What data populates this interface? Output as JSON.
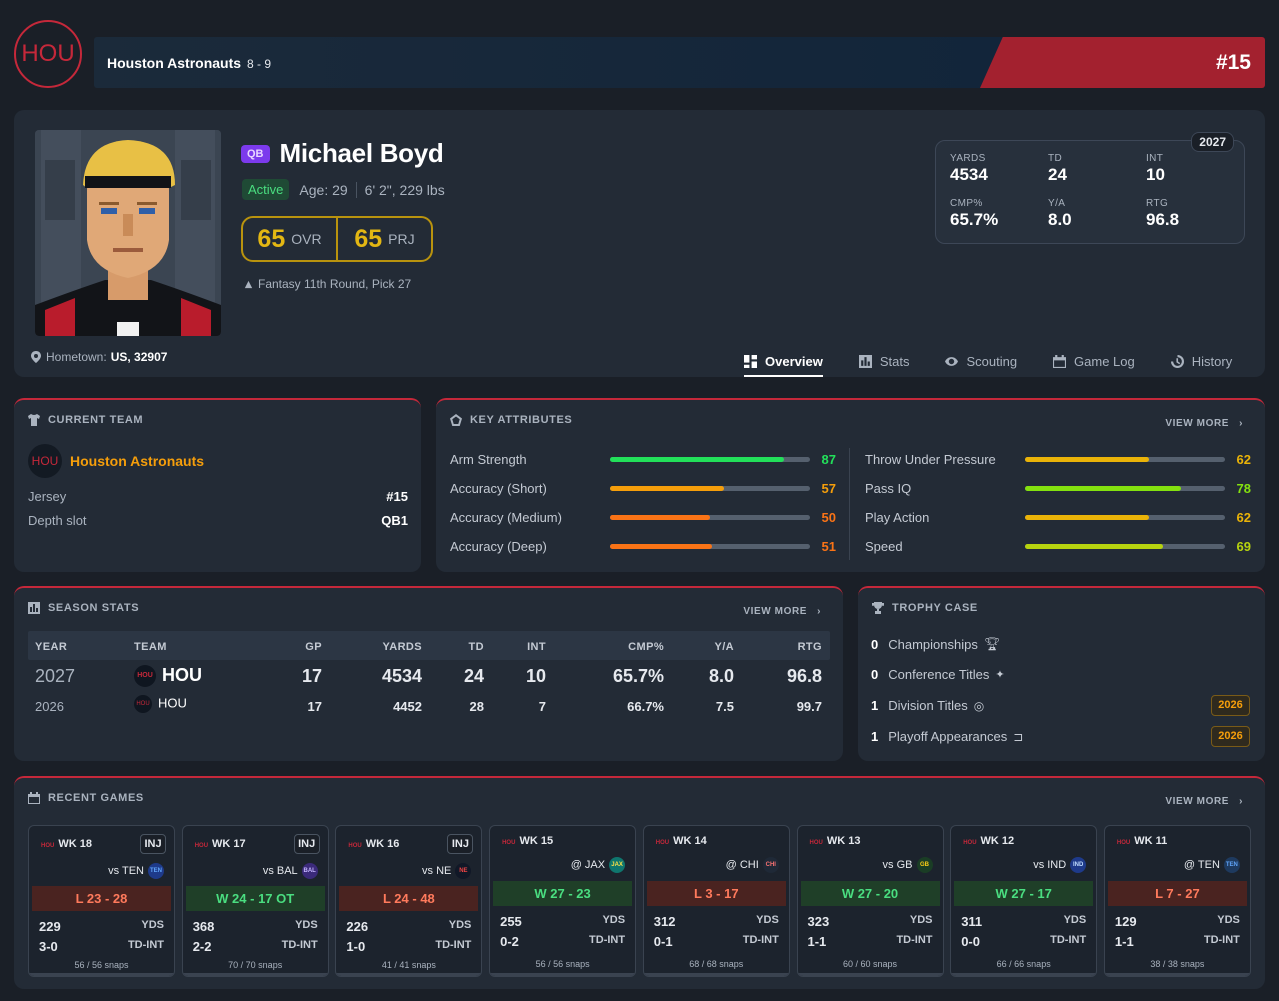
{
  "team_header": {
    "logo": "HOU",
    "name": "Houston Astronauts",
    "record": "8 - 9",
    "jersey": "#15"
  },
  "player": {
    "position": "QB",
    "name": "Michael Boyd",
    "status": "Active",
    "age": "Age: 29",
    "size": "6' 2\", 229 lbs",
    "ovr": "65",
    "ovr_label": "OVR",
    "prj": "65",
    "prj_label": "PRJ",
    "draft": "Fantasy 11th Round, Pick 27",
    "hometown_label": "Hometown:",
    "hometown": "US, 32907"
  },
  "season_box": {
    "year": "2027",
    "stats": [
      {
        "k": "YARDS",
        "v": "4534"
      },
      {
        "k": "TD",
        "v": "24"
      },
      {
        "k": "INT",
        "v": "10"
      },
      {
        "k": "CMP%",
        "v": "65.7%"
      },
      {
        "k": "Y/A",
        "v": "8.0"
      },
      {
        "k": "RTG",
        "v": "96.8"
      }
    ]
  },
  "tabs": [
    {
      "label": "Overview",
      "icon": "grid-icon"
    },
    {
      "label": "Stats",
      "icon": "bar-chart-icon"
    },
    {
      "label": "Scouting",
      "icon": "eye-icon"
    },
    {
      "label": "Game Log",
      "icon": "calendar-icon"
    },
    {
      "label": "History",
      "icon": "history-icon"
    }
  ],
  "current_team": {
    "title": "CURRENT TEAM",
    "logo": "HOU",
    "name": "Houston Astronauts",
    "jersey_label": "Jersey",
    "jersey": "#15",
    "depth_label": "Depth slot",
    "depth": "QB1"
  },
  "key_attributes": {
    "title": "KEY ATTRIBUTES",
    "view_more": "VIEW MORE",
    "items": [
      {
        "name": "Arm Strength",
        "value": "87",
        "pct": 87,
        "color": "#22e05a"
      },
      {
        "name": "Accuracy (Short)",
        "value": "57",
        "pct": 57,
        "color": "#f59e0b"
      },
      {
        "name": "Accuracy (Medium)",
        "value": "50",
        "pct": 50,
        "color": "#f97316"
      },
      {
        "name": "Accuracy (Deep)",
        "value": "51",
        "pct": 51,
        "color": "#f97316"
      },
      {
        "name": "Throw Under Pressure",
        "value": "62",
        "pct": 62,
        "color": "#eab308"
      },
      {
        "name": "Pass IQ",
        "value": "78",
        "pct": 78,
        "color": "#84e10f"
      },
      {
        "name": "Play Action",
        "value": "62",
        "pct": 62,
        "color": "#eab308"
      },
      {
        "name": "Speed",
        "value": "69",
        "pct": 69,
        "color": "#b7d30f"
      }
    ]
  },
  "season_stats": {
    "title": "SEASON STATS",
    "view_more": "VIEW MORE",
    "columns": [
      "YEAR",
      "TEAM",
      "GP",
      "YARDS",
      "TD",
      "INT",
      "CMP%",
      "Y/A",
      "RTG"
    ],
    "rows": [
      [
        "2027",
        "HOU",
        "17",
        "4534",
        "24",
        "10",
        "65.7%",
        "8.0",
        "96.8"
      ],
      [
        "2026",
        "HOU",
        "17",
        "4452",
        "28",
        "7",
        "66.7%",
        "7.5",
        "99.7"
      ]
    ]
  },
  "trophy_case": {
    "title": "TROPHY CASE",
    "items": [
      {
        "count": "0",
        "label": "Championships",
        "icon": "trophy-icon",
        "year": ""
      },
      {
        "count": "0",
        "label": "Conference Titles",
        "icon": "star-icon",
        "year": ""
      },
      {
        "count": "1",
        "label": "Division Titles",
        "icon": "medal-icon",
        "year": "2026"
      },
      {
        "count": "1",
        "label": "Playoff Appearances",
        "icon": "bracket-icon",
        "year": "2026"
      }
    ]
  },
  "recent_games": {
    "title": "RECENT GAMES",
    "view_more": "VIEW MORE",
    "games": [
      {
        "week": "WK 18",
        "inj": "INJ",
        "opp": "vs TEN",
        "opp_logo": "TEN",
        "opp_color": "#1e3a8a",
        "opp_text": "#60a5fa",
        "result": "L 23 - 28",
        "wl": "L",
        "yds": "229",
        "yds_label": "YDS",
        "tdint": "3-0",
        "tdint_label": "TD-INT",
        "snaps": "56 / 56 snaps"
      },
      {
        "week": "WK 17",
        "inj": "INJ",
        "opp": "vs BAL",
        "opp_logo": "BAL",
        "opp_color": "#3b2a7a",
        "opp_text": "#c4b5fd",
        "result": "W 24 - 17 OT",
        "wl": "W",
        "yds": "368",
        "yds_label": "YDS",
        "tdint": "2-2",
        "tdint_label": "TD-INT",
        "snaps": "70 / 70 snaps"
      },
      {
        "week": "WK 16",
        "inj": "INJ",
        "opp": "vs NE",
        "opp_logo": "NE",
        "opp_color": "#111827",
        "opp_text": "#ef4444",
        "result": "L 24 - 48",
        "wl": "L",
        "yds": "226",
        "yds_label": "YDS",
        "tdint": "1-0",
        "tdint_label": "TD-INT",
        "snaps": "41 / 41 snaps"
      },
      {
        "week": "WK 15",
        "inj": "",
        "opp": "@ JAX",
        "opp_logo": "JAX",
        "opp_color": "#0f766e",
        "opp_text": "#fde047",
        "result": "W 27 - 23",
        "wl": "W",
        "yds": "255",
        "yds_label": "YDS",
        "tdint": "0-2",
        "tdint_label": "TD-INT",
        "snaps": "56 / 56 snaps"
      },
      {
        "week": "WK 14",
        "inj": "",
        "opp": "@ CHI",
        "opp_logo": "CHI",
        "opp_color": "#1f2937",
        "opp_text": "#f87171",
        "result": "L 3 - 17",
        "wl": "L",
        "yds": "312",
        "yds_label": "YDS",
        "tdint": "0-1",
        "tdint_label": "TD-INT",
        "snaps": "68 / 68 snaps"
      },
      {
        "week": "WK 13",
        "inj": "",
        "opp": "vs GB",
        "opp_logo": "GB",
        "opp_color": "#1a3d25",
        "opp_text": "#facc15",
        "result": "W 27 - 20",
        "wl": "W",
        "yds": "323",
        "yds_label": "YDS",
        "tdint": "1-1",
        "tdint_label": "TD-INT",
        "snaps": "60 / 60 snaps"
      },
      {
        "week": "WK 12",
        "inj": "",
        "opp": "vs IND",
        "opp_logo": "IND",
        "opp_color": "#1e3a8a",
        "opp_text": "#bfdbfe",
        "result": "W 27 - 17",
        "wl": "W",
        "yds": "311",
        "yds_label": "YDS",
        "tdint": "0-0",
        "tdint_label": "TD-INT",
        "snaps": "66 / 66 snaps"
      },
      {
        "week": "WK 11",
        "inj": "",
        "opp": "@ TEN",
        "opp_logo": "TEN",
        "opp_color": "#1e3a5f",
        "opp_text": "#60a5fa",
        "result": "L 7 - 27",
        "wl": "L",
        "yds": "129",
        "yds_label": "YDS",
        "tdint": "1-1",
        "tdint_label": "TD-INT",
        "snaps": "38 / 38 snaps"
      }
    ]
  },
  "colors": {
    "accent": "#c5283a",
    "gold": "#e3b713",
    "bg": "#1a1f27",
    "card": "#232b36"
  }
}
